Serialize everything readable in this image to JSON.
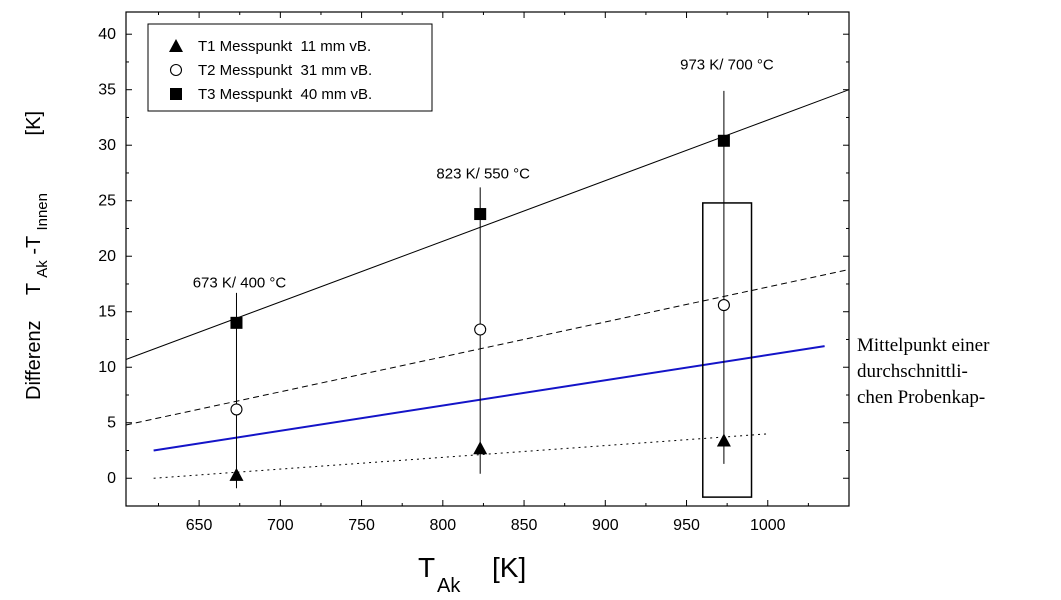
{
  "chart_data": {
    "type": "scatter",
    "xlabel": "T",
    "xlabel_sub": "Ak",
    "xlabel_unit": "[K]",
    "ylabel_prefix": "Differenz",
    "ylabel_T1": "T",
    "ylabel_sub1": "Ak",
    "ylabel_dash": "-T",
    "ylabel_sub2": "Innen",
    "ylabel_unit": "[K]",
    "xlim": [
      605,
      1050
    ],
    "ylim": [
      -2.5,
      42
    ],
    "xticks": [
      650,
      700,
      750,
      800,
      850,
      900,
      950,
      1000
    ],
    "yticks": [
      0,
      5,
      10,
      15,
      20,
      25,
      30,
      35,
      40
    ],
    "legend_position": "top-left",
    "series": [
      {
        "name": "T1 Messpunkt  11 mm vB.",
        "marker": "triangle",
        "x": [
          673,
          823,
          973
        ],
        "y": [
          0.3,
          2.7,
          3.4
        ]
      },
      {
        "name": "T2 Messpunkt  31 mm vB.",
        "marker": "circle-open",
        "x": [
          673,
          823,
          973
        ],
        "y": [
          6.2,
          13.4,
          15.6
        ]
      },
      {
        "name": "T3 Messpunkt  40 mm vB.",
        "marker": "square",
        "x": [
          673,
          823,
          973
        ],
        "y": [
          14.0,
          23.8,
          30.4
        ]
      }
    ],
    "fit_lines": [
      {
        "style": "solid-black",
        "x": [
          605,
          1050
        ],
        "y": [
          10.7,
          35.0
        ]
      },
      {
        "style": "dashed-black",
        "x": [
          605,
          1050
        ],
        "y": [
          4.8,
          18.8
        ]
      },
      {
        "style": "solid-blue",
        "x": [
          622,
          1035
        ],
        "y": [
          2.5,
          11.9
        ]
      },
      {
        "style": "dotted-black",
        "x": [
          622,
          1000
        ],
        "y": [
          0.0,
          4.0
        ]
      }
    ],
    "error_bars": [
      {
        "x": 673,
        "y_low": -0.9,
        "y_high": 16.7
      },
      {
        "x": 823,
        "y_low": 0.4,
        "y_high": 26.2
      },
      {
        "x": 973,
        "y_low": 1.3,
        "y_high": 34.9
      }
    ],
    "highlight_box": {
      "x": [
        960,
        990
      ],
      "y": [
        -1.7,
        24.8
      ]
    },
    "annotations": [
      {
        "text": "673 K/ 400 °C",
        "x": 673,
        "y": 17.2
      },
      {
        "text": "823 K/ 550 °C",
        "x": 823,
        "y": 27.0
      },
      {
        "text": "973 K/ 700 °C",
        "x": 973,
        "y": 36.8
      }
    ]
  },
  "side_note": {
    "line1": "Mittelpunkt einer",
    "line2": "durchschnittli-",
    "line3": "chen Probenkap-"
  },
  "colors": {
    "axis": "#000000",
    "blue_line": "#1414c8"
  }
}
